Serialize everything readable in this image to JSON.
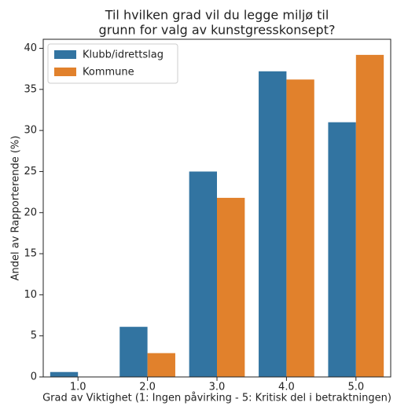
{
  "chart_data": {
    "type": "bar",
    "title": [
      "Til hvilken grad vil du legge miljø til",
      "grunn for valg av kunstgresskonsept?"
    ],
    "xlabel": "Grad av Viktighet (1: Ingen påvirking - 5: Kritisk del i betraktningen)",
    "ylabel": "Andel av Rapporterende (%)",
    "categories": [
      "1.0",
      "2.0",
      "3.0",
      "4.0",
      "5.0"
    ],
    "series": [
      {
        "name": "Klubb/idrettslag",
        "color": "#3274a1",
        "values": [
          0.6,
          6.1,
          25.0,
          37.2,
          31.0
        ]
      },
      {
        "name": "Kommune",
        "color": "#e1812c",
        "values": [
          0,
          2.9,
          21.8,
          36.2,
          39.2
        ]
      }
    ],
    "ylim": [
      0,
      41.1
    ],
    "yticks": [
      0,
      5,
      10,
      15,
      20,
      25,
      30,
      35,
      40
    ],
    "legend": "upper left",
    "grid": false
  }
}
